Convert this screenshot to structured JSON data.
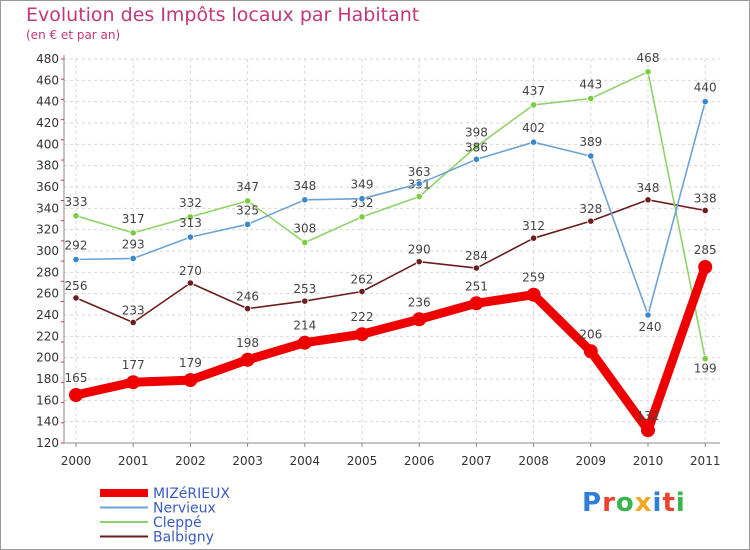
{
  "title": "Evolution des Impôts locaux par Habitant",
  "subtitle": "(en € et par an)",
  "logo": {
    "text": "Proxiti",
    "letter_colors": [
      "#2f7fd6",
      "#e8442f",
      "#39b54a",
      "#f5a623",
      "#2f7fd6",
      "#e8442f",
      "#39b54a"
    ]
  },
  "chart_data": {
    "type": "line",
    "x": [
      "2000",
      "2001",
      "2002",
      "2003",
      "2004",
      "2005",
      "2006",
      "2007",
      "2008",
      "2009",
      "2010",
      "2011"
    ],
    "ylim": [
      120,
      480
    ],
    "yticks": [
      120,
      140,
      160,
      180,
      200,
      220,
      240,
      260,
      280,
      300,
      320,
      340,
      360,
      380,
      400,
      420,
      440,
      460,
      480
    ],
    "grid": true,
    "legend_position": "bottom-left",
    "series": [
      {
        "name": "Balbigny",
        "color": "#6b1e1e",
        "marker": "#6b1e1e",
        "values": [
          256,
          233,
          270,
          246,
          253,
          262,
          290,
          284,
          312,
          328,
          348,
          338
        ]
      },
      {
        "name": "Cleppé",
        "color": "#8fd36a",
        "marker": "#7ccc3f",
        "values": [
          333,
          317,
          332,
          347,
          308,
          332,
          351,
          398,
          437,
          443,
          468,
          199
        ]
      },
      {
        "name": "Nervieux",
        "color": "#6ea3d4",
        "marker": "#3a88cc",
        "values": [
          292,
          293,
          313,
          325,
          348,
          349,
          363,
          386,
          402,
          389,
          240,
          440
        ]
      },
      {
        "name": "MIZéRIEUX",
        "color": "#ee0000",
        "marker": "#ee0000",
        "values": [
          165,
          177,
          179,
          198,
          214,
          222,
          236,
          251,
          259,
          206,
          132,
          285
        ]
      }
    ],
    "legend_order": [
      "MIZéRIEUX",
      "Nervieux",
      "Cleppé",
      "Balbigny"
    ]
  }
}
